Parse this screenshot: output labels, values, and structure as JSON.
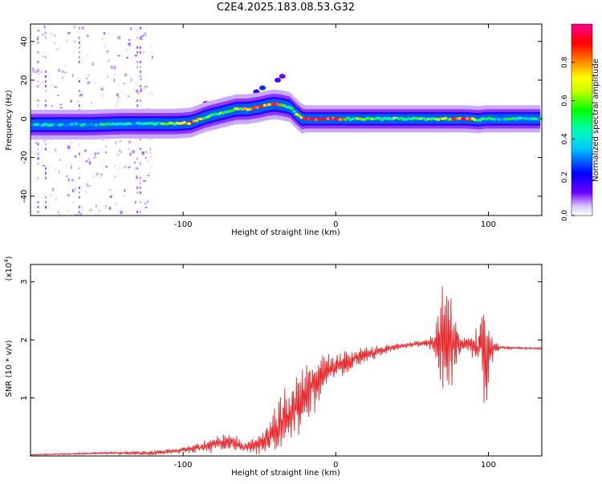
{
  "figure": {
    "title": "C2E4.2025.183.08.53.G32"
  },
  "chart_data": [
    {
      "type": "heatmap",
      "xlabel": "Height of straight line (km)",
      "ylabel": "Frequency (Hz)",
      "xlim": [
        -200,
        135
      ],
      "ylim": [
        -50,
        49
      ],
      "x_ticks": [
        -100,
        0,
        100
      ],
      "y_ticks": [
        -40,
        -20,
        0,
        20,
        40
      ],
      "colorbar": {
        "label": "Normalized spectral amplitude",
        "range": [
          0,
          1
        ],
        "ticks": [
          "0.0",
          "0.2",
          "0.4",
          "0.6",
          "0.8"
        ]
      },
      "ridge": {
        "x": [
          -200,
          -180,
          -160,
          -140,
          -120,
          -105,
          -95,
          -85,
          -75,
          -65,
          -58,
          -50,
          -45,
          -40,
          -35,
          -30,
          -25,
          -22,
          -15,
          -5,
          0,
          10,
          30,
          50,
          70,
          85,
          95,
          97,
          110,
          135
        ],
        "freq": [
          -3,
          -3,
          -3,
          -2.5,
          -2.5,
          -2.5,
          -2,
          1,
          3,
          5,
          5,
          6,
          7,
          7.5,
          7,
          6,
          2,
          0,
          0,
          0,
          0,
          0,
          0,
          0,
          0,
          0,
          -0.5,
          0,
          0,
          0
        ],
        "amplitude": [
          0.35,
          0.35,
          0.4,
          0.4,
          0.45,
          0.55,
          0.85,
          0.5,
          0.5,
          0.55,
          0.8,
          0.8,
          0.75,
          0.8,
          0.6,
          0.45,
          0.6,
          0.9,
          0.95,
          0.9,
          0.9,
          0.55,
          0.55,
          0.5,
          0.6,
          0.9,
          0.55,
          0.45,
          0.45,
          0.45
        ]
      }
    },
    {
      "type": "line",
      "xlabel": "Height of straight line (km)",
      "ylabel": "SNR (10 * v/v)",
      "exponent_label": "(x10",
      "exponent_sup": "4",
      "exponent_close": ")",
      "xlim": [
        -200,
        135
      ],
      "ylim": [
        0,
        3.3
      ],
      "x_ticks": [
        -100,
        0,
        100
      ],
      "y_ticks": [
        1,
        2,
        3
      ],
      "color": "#e8282c",
      "envelope": {
        "x": [
          -200,
          -150,
          -120,
          -100,
          -90,
          -80,
          -70,
          -60,
          -50,
          -45,
          -40,
          -35,
          -30,
          -25,
          -20,
          -15,
          -10,
          -5,
          0,
          10,
          20,
          30,
          40,
          50,
          60,
          65,
          68,
          70,
          72,
          75,
          78,
          82,
          88,
          92,
          96,
          98,
          100,
          102,
          104,
          110,
          120,
          135
        ],
        "mean": [
          0.02,
          0.05,
          0.05,
          0.1,
          0.15,
          0.2,
          0.25,
          0.15,
          0.2,
          0.3,
          0.45,
          0.6,
          0.7,
          0.9,
          1.1,
          1.2,
          1.3,
          1.45,
          1.55,
          1.65,
          1.75,
          1.82,
          1.88,
          1.92,
          1.95,
          1.95,
          1.95,
          1.9,
          1.9,
          1.95,
          1.92,
          1.9,
          1.9,
          1.9,
          1.85,
          1.85,
          1.8,
          1.85,
          1.87,
          1.87,
          1.86,
          1.85
        ],
        "amp": [
          0.01,
          0.02,
          0.04,
          0.06,
          0.1,
          0.15,
          0.2,
          0.1,
          0.2,
          0.3,
          0.45,
          0.55,
          0.6,
          0.6,
          0.6,
          0.55,
          0.45,
          0.35,
          0.25,
          0.2,
          0.15,
          0.1,
          0.06,
          0.05,
          0.08,
          0.25,
          0.6,
          1.2,
          1.45,
          1.2,
          0.6,
          0.2,
          0.15,
          0.35,
          0.9,
          1.1,
          1.15,
          0.4,
          0.1,
          0.03,
          0.02,
          0.02
        ]
      }
    }
  ]
}
